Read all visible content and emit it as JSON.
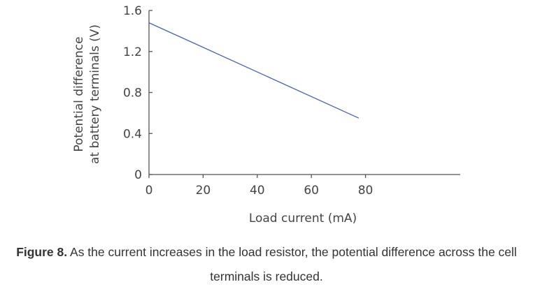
{
  "chart_data": {
    "type": "line",
    "xlabel": "Load current (mA)",
    "ylabel_lines": [
      "Potential difference",
      "at battery terminals (V)"
    ],
    "xlim": [
      0,
      115
    ],
    "ylim": [
      0,
      1.6
    ],
    "x_ticks": [
      0,
      20,
      40,
      60,
      80
    ],
    "x_tick_labels": [
      "0",
      "20",
      "40",
      "60",
      "80"
    ],
    "y_ticks": [
      0,
      0.4,
      0.8,
      1.2,
      1.6
    ],
    "y_tick_labels": [
      "0",
      "0.4",
      "0.8",
      "1.2",
      "1.6"
    ],
    "grid": false,
    "series": [
      {
        "x": [
          0,
          77.5
        ],
        "y": [
          1.48,
          0.55
        ]
      }
    ]
  },
  "colors": {
    "line": "#4a64b3",
    "axis": "#555555"
  },
  "caption": {
    "label": "Figure 8.",
    "text": " As the current increases in the load resistor, the potential difference across the cell terminals is reduced."
  }
}
